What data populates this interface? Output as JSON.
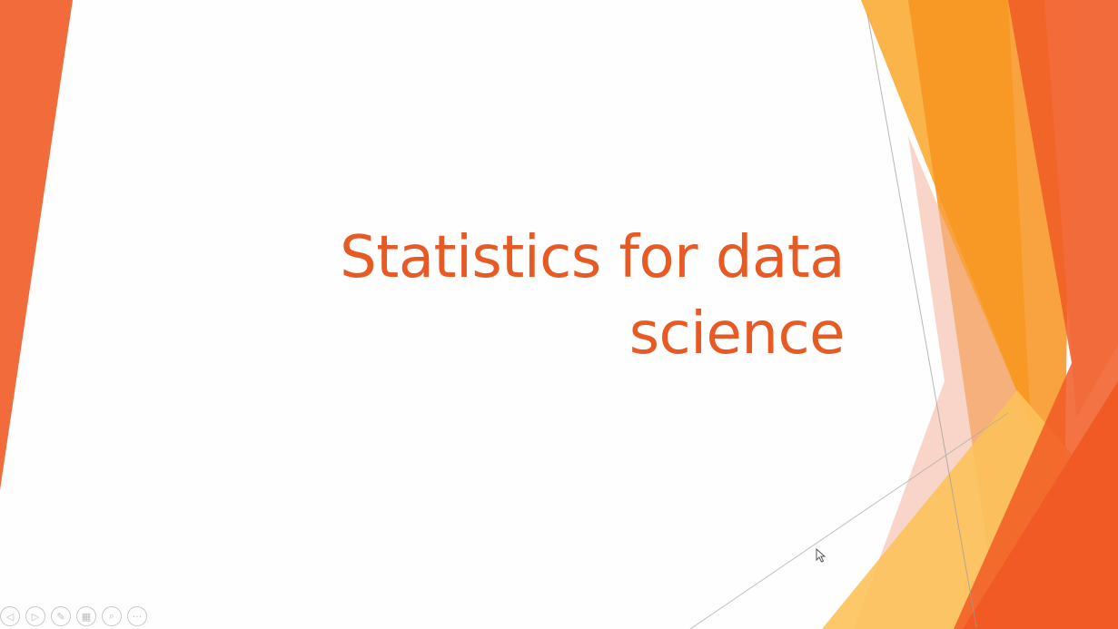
{
  "slide": {
    "title_line1": "Statistics for data",
    "title_line2": "science"
  },
  "controls": {
    "items": [
      {
        "icon": "previous-icon",
        "glyph": "◁"
      },
      {
        "icon": "next-icon",
        "glyph": "▷"
      },
      {
        "icon": "pen-icon",
        "glyph": "✎"
      },
      {
        "icon": "slides-grid-icon",
        "glyph": "▦"
      },
      {
        "icon": "zoom-icon",
        "glyph": "⌕"
      },
      {
        "icon": "more-icon",
        "glyph": "···"
      }
    ]
  },
  "colors": {
    "title": "#e85a24",
    "orange_dark": "#f15a24",
    "orange": "#f7931e",
    "amber": "#fbb040",
    "salmon": "#f4b9a4"
  }
}
